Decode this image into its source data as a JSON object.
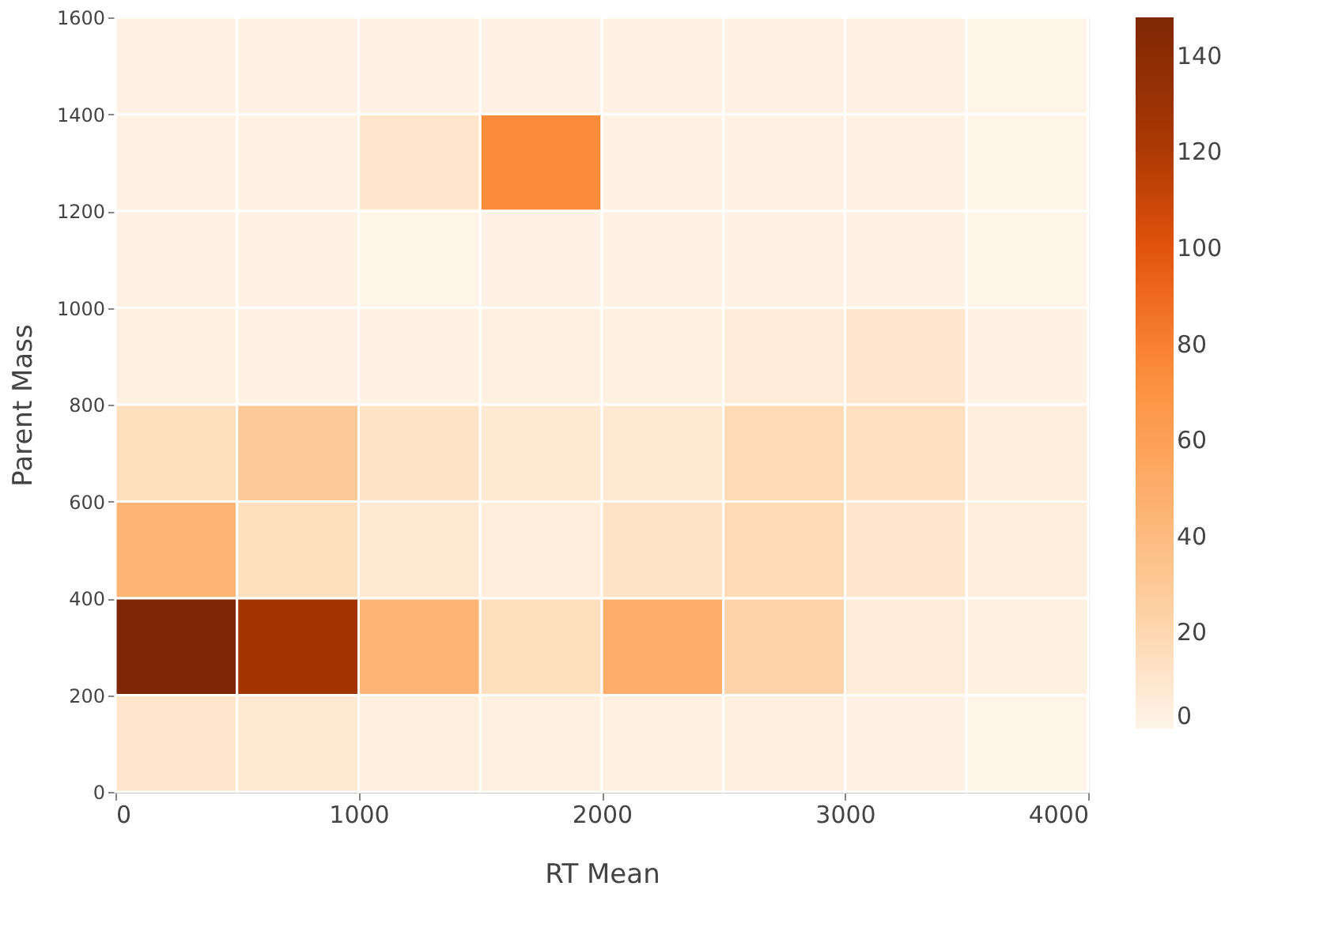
{
  "chart_data": {
    "type": "heatmap",
    "xlabel": "RT Mean",
    "ylabel": "Parent Mass",
    "x": [
      250,
      750,
      1250,
      1750,
      2250,
      2750,
      3250,
      3750
    ],
    "y": [
      1500,
      1300,
      1100,
      900,
      700,
      500,
      300,
      100
    ],
    "xlim": [
      0,
      4000
    ],
    "xticks": [
      0,
      1000,
      2000,
      3000,
      4000
    ],
    "ylim": [
      0,
      1600
    ],
    "yticks": [
      0,
      200,
      400,
      600,
      800,
      1000,
      1200,
      1400,
      1600
    ],
    "cells": [
      [
        2,
        2,
        2,
        2,
        2,
        2,
        2,
        1
      ],
      [
        2,
        2,
        10,
        75,
        2,
        2,
        2,
        1
      ],
      [
        2,
        2,
        1,
        2,
        2,
        2,
        2,
        1
      ],
      [
        3,
        2,
        2,
        3,
        3,
        6,
        10,
        2
      ],
      [
        15,
        30,
        12,
        8,
        8,
        18,
        14,
        5
      ],
      [
        45,
        15,
        8,
        5,
        12,
        18,
        10,
        5
      ],
      [
        148,
        125,
        45,
        15,
        50,
        22,
        6,
        3
      ],
      [
        10,
        8,
        4,
        3,
        3,
        4,
        2,
        1
      ]
    ],
    "clim": [
      0,
      148
    ],
    "cticks": [
      0,
      20,
      40,
      60,
      80,
      100,
      120,
      140
    ]
  }
}
